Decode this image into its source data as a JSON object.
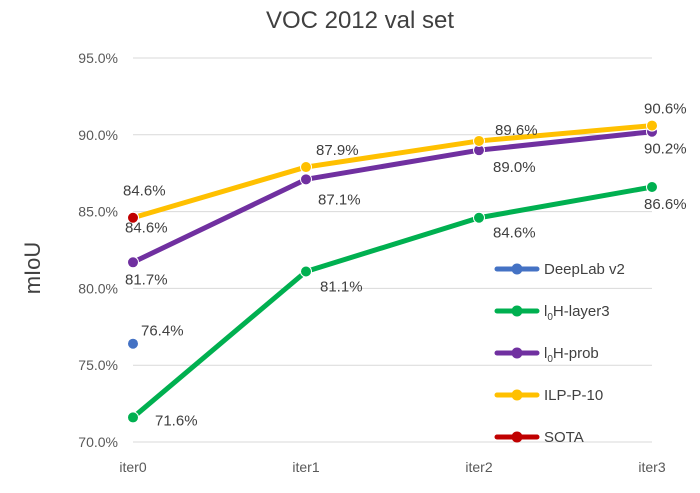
{
  "chart_data": {
    "type": "line",
    "title": "VOC 2012 val set",
    "xlabel": "",
    "ylabel": "mIoU",
    "categories": [
      "iter0",
      "iter1",
      "iter2",
      "iter3"
    ],
    "ylim": [
      70.0,
      95.0
    ],
    "yticks": [
      70.0,
      75.0,
      80.0,
      85.0,
      90.0,
      95.0
    ],
    "ytick_labels": [
      "70.0%",
      "75.0%",
      "80.0%",
      "85.0%",
      "90.0%",
      "95.0%"
    ],
    "grid": true,
    "legend_position": "bottom-right",
    "series": [
      {
        "name": "DeepLab v2",
        "legend_base": "DeepLab v2",
        "legend_sub": "",
        "legend_rest": "",
        "color": "#4472C4",
        "values": [
          76.4,
          null,
          null,
          null
        ],
        "labels": [
          "76.4%",
          null,
          null,
          null
        ]
      },
      {
        "name": "l0H-layer3",
        "legend_base": "l",
        "legend_sub": "0",
        "legend_rest": "H-layer3",
        "color": "#00B050",
        "values": [
          71.6,
          81.1,
          84.6,
          86.6
        ],
        "labels": [
          "71.6%",
          "81.1%",
          "84.6%",
          "86.6%"
        ]
      },
      {
        "name": "l0H-prob",
        "legend_base": "l",
        "legend_sub": "0",
        "legend_rest": "H-prob",
        "color": "#7030A0",
        "values": [
          81.7,
          87.1,
          89.0,
          90.2
        ],
        "labels": [
          "81.7%",
          "87.1%",
          "89.0%",
          "90.2%"
        ]
      },
      {
        "name": "ILP-P-10",
        "legend_base": "ILP-P-10",
        "legend_sub": "",
        "legend_rest": "",
        "color": "#FFC000",
        "values": [
          84.6,
          87.9,
          89.6,
          90.6
        ],
        "labels": [
          "84.6%",
          "87.9%",
          "89.6%",
          "90.6%"
        ]
      },
      {
        "name": "SOTA",
        "legend_base": "SOTA",
        "legend_sub": "",
        "legend_rest": "",
        "color": "#C00000",
        "values": [
          84.6,
          null,
          null,
          null
        ],
        "labels": [
          "84.6%",
          null,
          null,
          null
        ]
      }
    ]
  }
}
